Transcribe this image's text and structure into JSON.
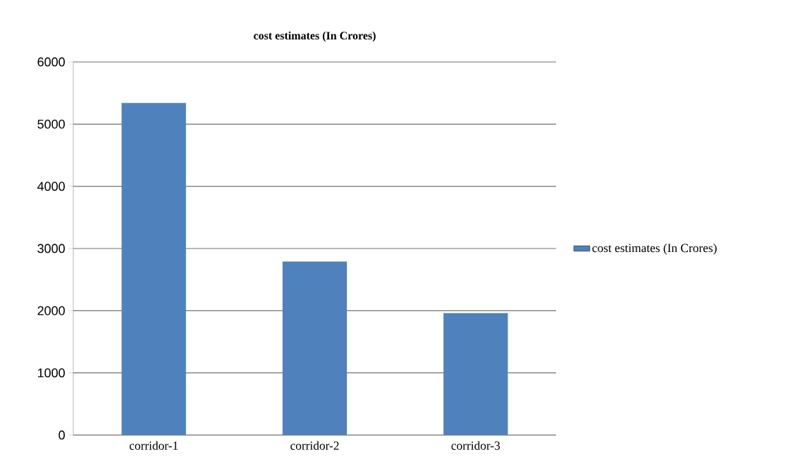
{
  "chart_data": {
    "type": "bar",
    "title": "cost estimates (In Crores)",
    "categories": [
      "corridor-1",
      "corridor-2",
      "corridor-3"
    ],
    "series": [
      {
        "name": "cost estimates (In Crores)",
        "color": "#4f81bd",
        "values": [
          5340,
          2790,
          1960
        ]
      }
    ],
    "ylim": [
      0,
      6000
    ],
    "yticks": [
      0,
      1000,
      2000,
      3000,
      4000,
      5000,
      6000
    ],
    "grid": "y",
    "legend": "right"
  }
}
